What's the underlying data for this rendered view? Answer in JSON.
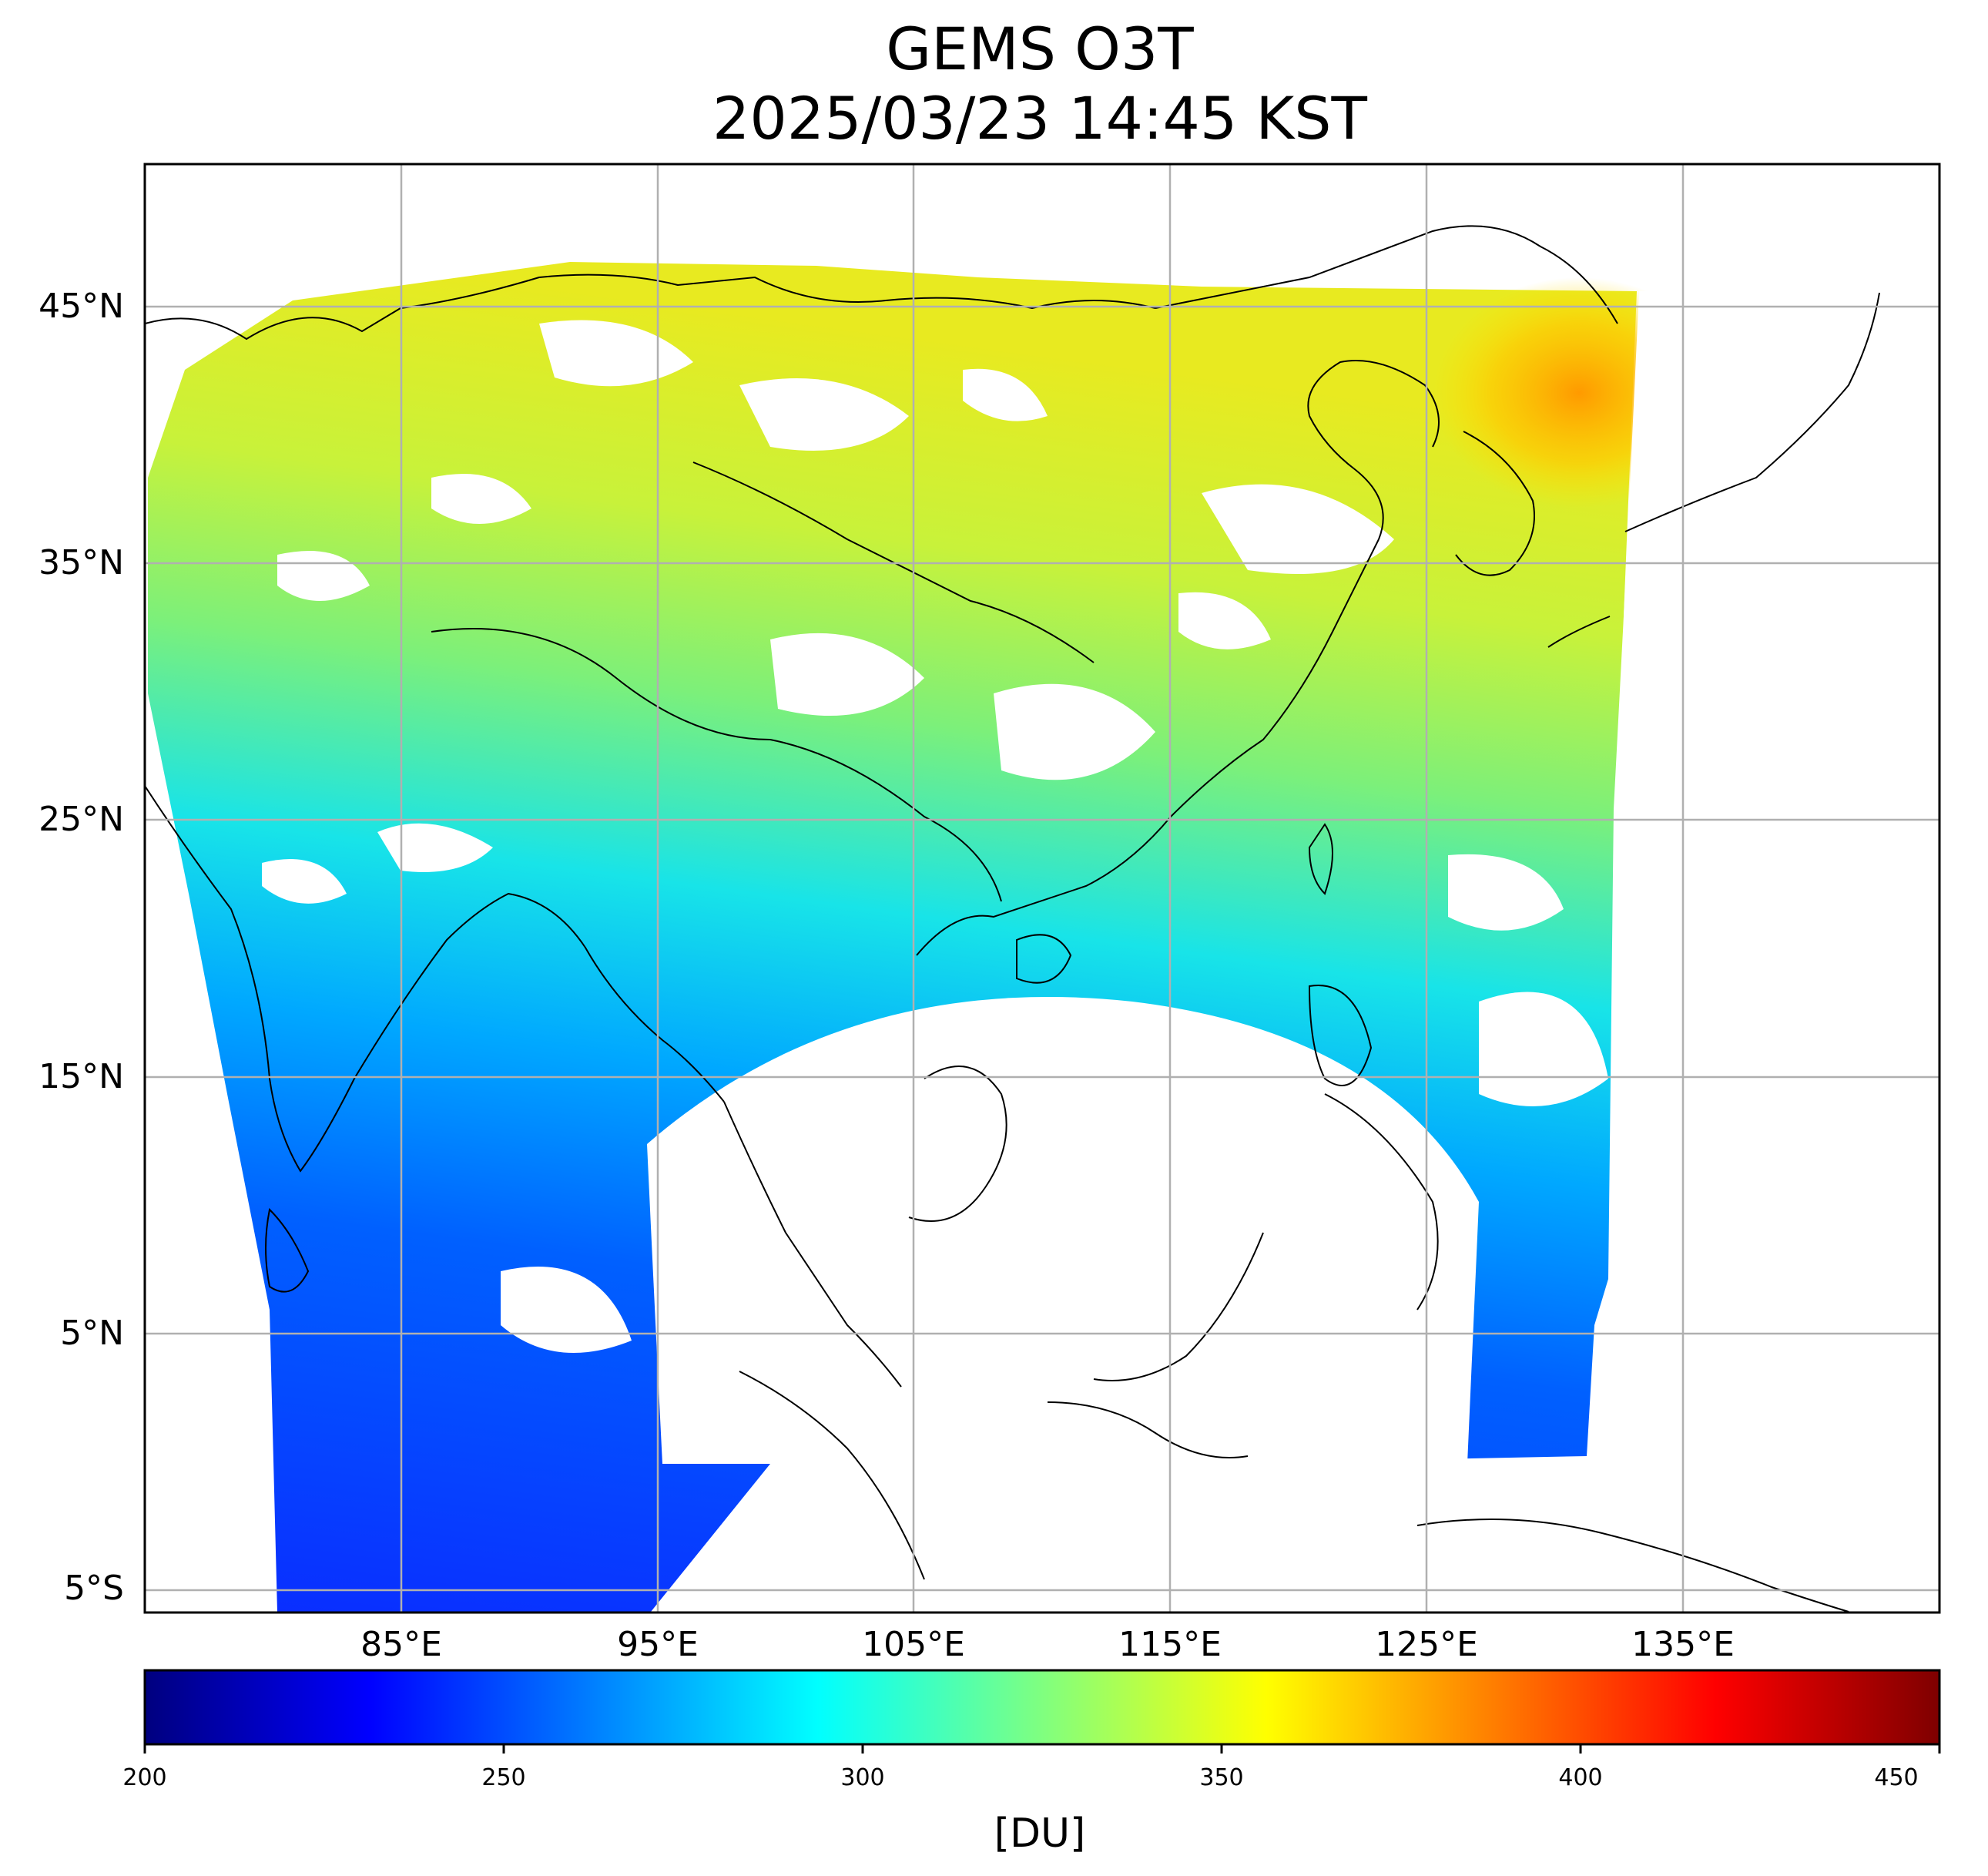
{
  "title": {
    "line1": "GEMS O3T",
    "line2": "2025/03/23 14:45 KST"
  },
  "map": {
    "lat_labels": [
      "45°N",
      "35°N",
      "25°N",
      "15°N",
      "5°N",
      "5°S"
    ],
    "lon_labels": [
      "85°E",
      "95°E",
      "105°E",
      "115°E",
      "125°E",
      "135°E"
    ],
    "lat_range": [
      -6,
      50.5
    ],
    "lon_range": [
      75,
      145
    ],
    "gridlines": true,
    "gridline_color": "#b0b0b0",
    "no_data_color": "#ffffff",
    "coastline_color": "#000000"
  },
  "colorbar": {
    "colormap": "jet",
    "ticks": [
      "200",
      "250",
      "300",
      "350",
      "400",
      "450"
    ],
    "range": [
      200,
      450
    ],
    "unit": "[DU]",
    "colors": [
      "#00007f",
      "#0000ff",
      "#007fff",
      "#17ffe1",
      "#e1ff17",
      "#ff7f00",
      "#ff0000",
      "#7f0000"
    ]
  }
}
